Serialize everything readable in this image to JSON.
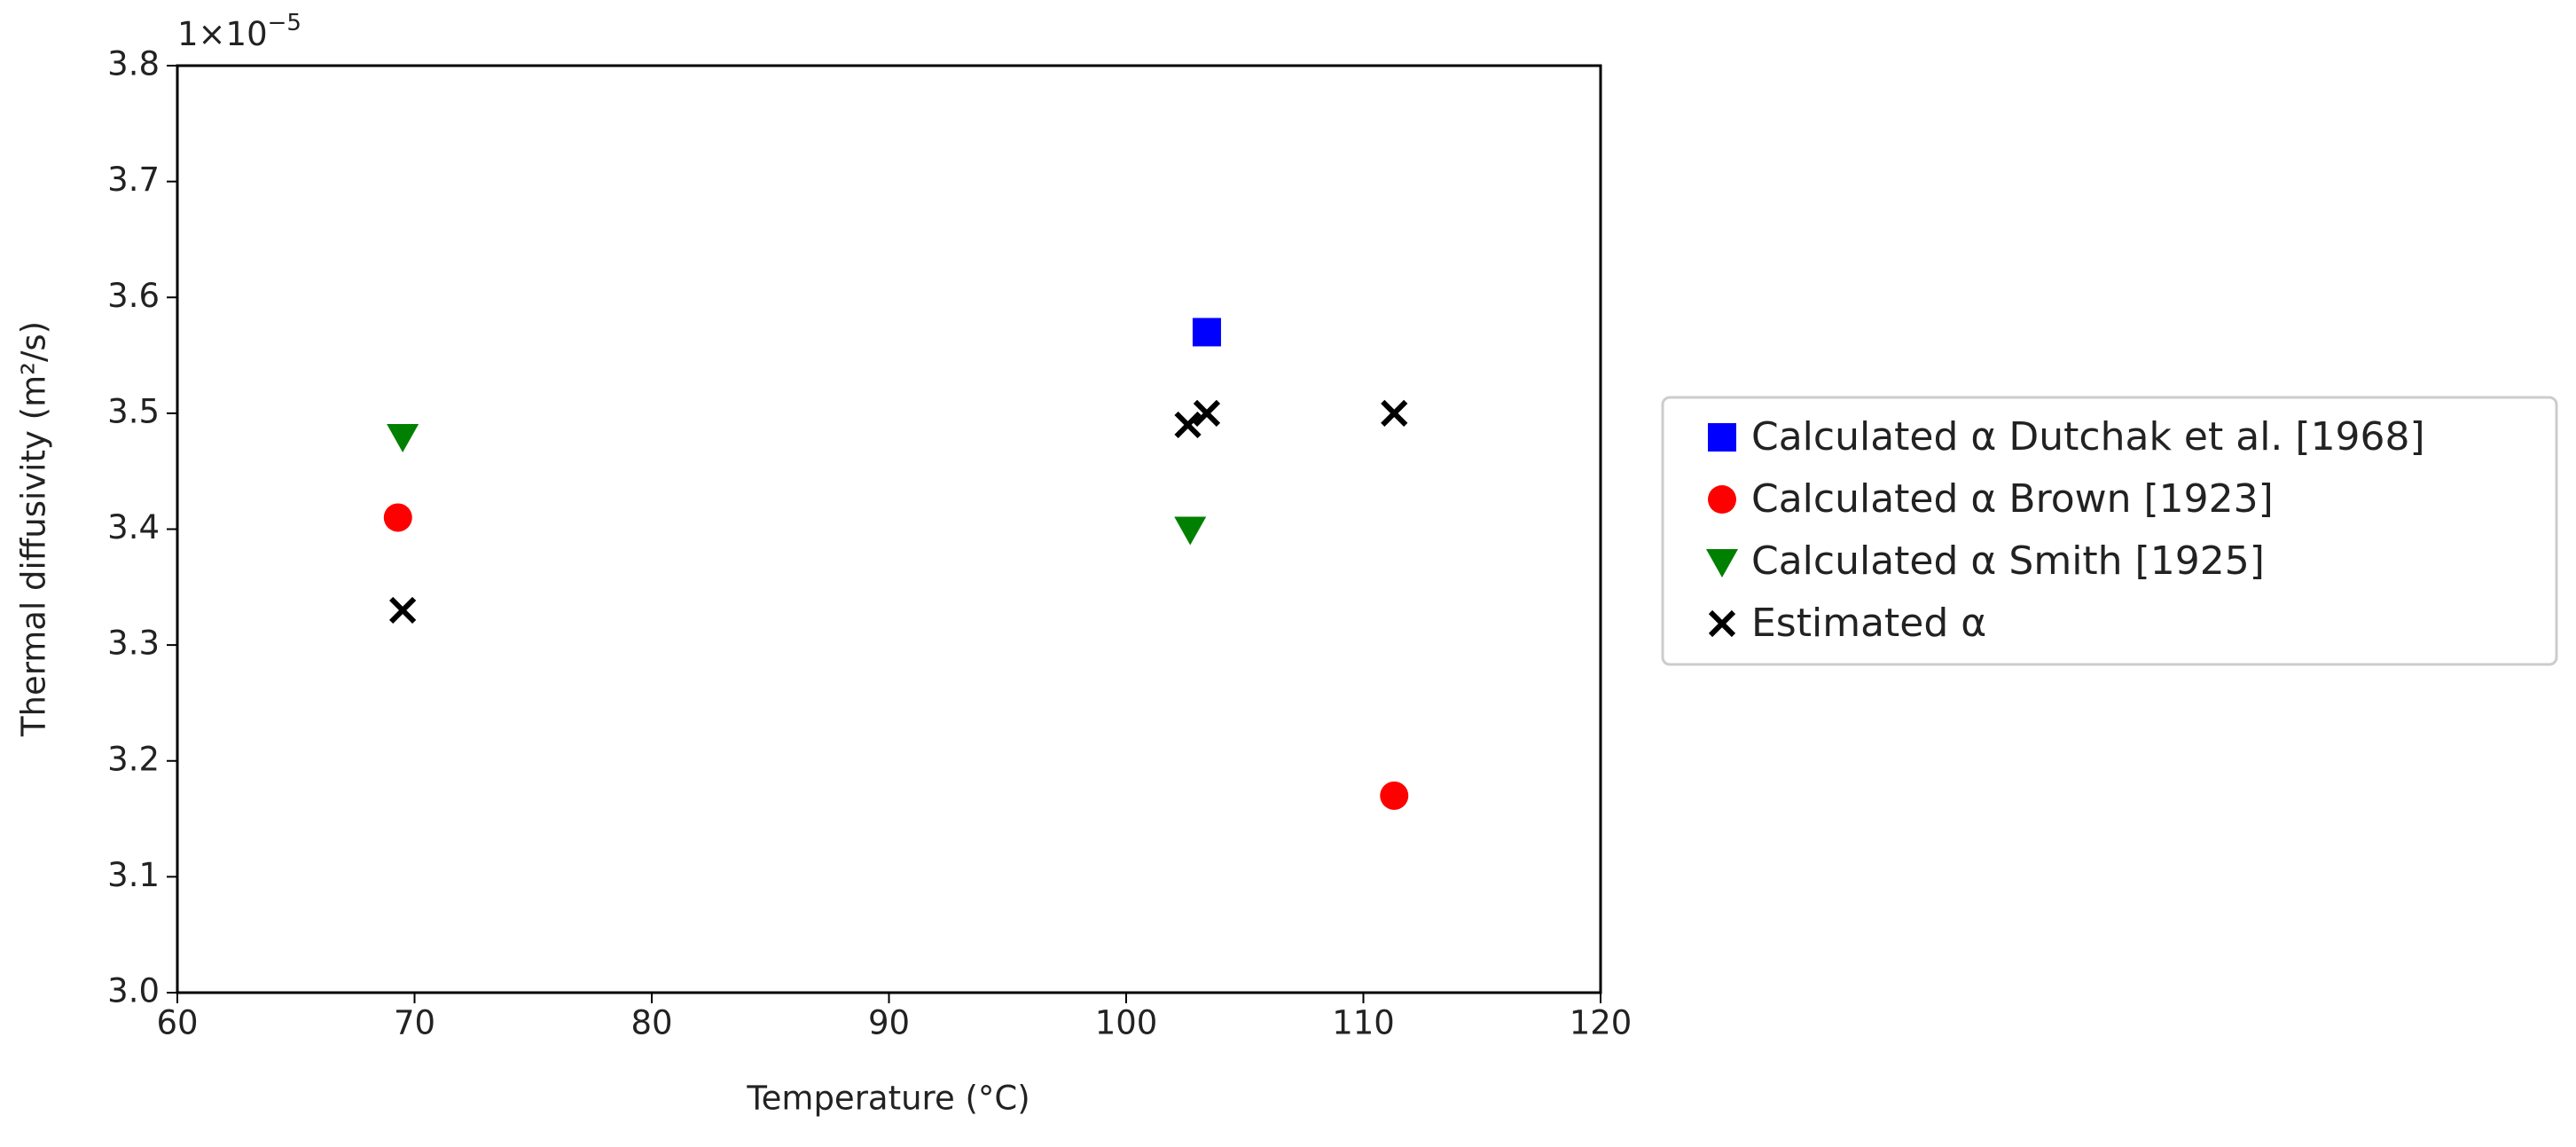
{
  "chart_data": {
    "type": "scatter",
    "xlabel": "Temperature (°C)",
    "ylabel": "Thermal diffusivity (m²/s)",
    "y_offset": {
      "base": "1×10",
      "exponent": "−5"
    },
    "xlim": [
      60,
      120
    ],
    "xticks": [
      60,
      70,
      80,
      90,
      100,
      110,
      120
    ],
    "ylim": [
      3.0,
      3.8
    ],
    "yticks": [
      {
        "value": 3,
        "label": "3.0"
      },
      3.1,
      3.2,
      3.3,
      3.4,
      3.5,
      3.6,
      3.7,
      3.8
    ],
    "grid": false,
    "legend": "right",
    "series": [
      {
        "name": "Calculated α Dutchak et al. [1968]",
        "color": "#0000ff",
        "marker": "square",
        "x": [
          103.4
        ],
        "values": [
          3.57
        ]
      },
      {
        "name": "Calculated α Brown [1923]",
        "color": "#ff0000",
        "marker": "circle",
        "x": [
          69.3,
          111.3
        ],
        "values": [
          3.41,
          3.17
        ]
      },
      {
        "name": "Calculated α Smith [1925]",
        "color": "#008000",
        "marker": "triangle-down",
        "x": [
          69.5,
          102.7
        ],
        "values": [
          3.48,
          3.4
        ]
      },
      {
        "name": "Estimated α",
        "color": "#000000",
        "marker": "x",
        "x": [
          69.5,
          102.6,
          103.4,
          111.3
        ],
        "values": [
          3.33,
          3.49,
          3.5,
          3.5
        ]
      }
    ]
  }
}
